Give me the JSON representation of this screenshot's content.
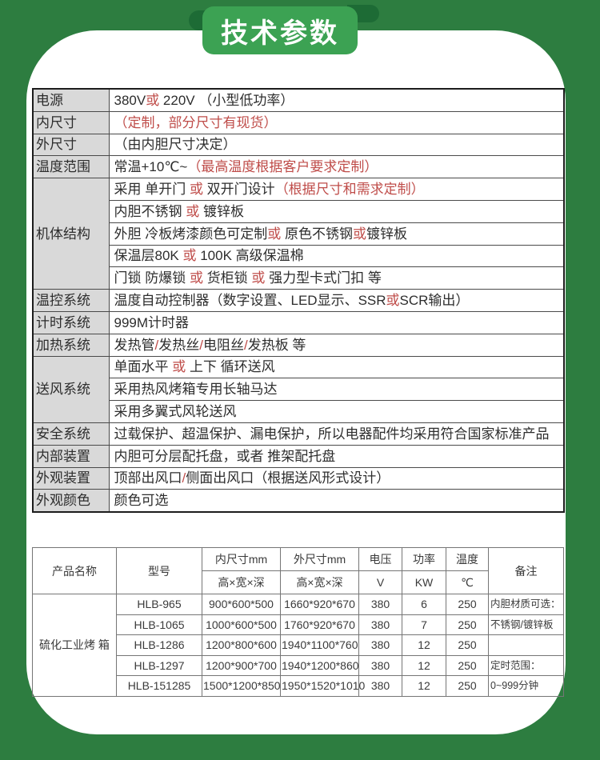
{
  "badge": {
    "label": "技术参数"
  },
  "colors": {
    "frame_green": "#2d7d40",
    "badge_green": "#3ca253",
    "fold_green": "#1d6b35",
    "accent_red": "#bf4c49",
    "label_gray": "#d9d9d9"
  },
  "spec_table": {
    "rows": [
      {
        "label": "电源",
        "lines": [
          [
            {
              "t": "380V",
              "c": "k"
            },
            {
              "t": "或",
              "c": "r"
            },
            {
              "t": " 220V （小型低功率）",
              "c": "k"
            }
          ]
        ]
      },
      {
        "label": "内尺寸",
        "lines": [
          [
            {
              "t": "（定制，部分尺寸有现货）",
              "c": "r"
            }
          ]
        ]
      },
      {
        "label": "外尺寸",
        "lines": [
          [
            {
              "t": "（由内胆尺寸决定）",
              "c": "k"
            }
          ]
        ]
      },
      {
        "label": "温度范围",
        "lines": [
          [
            {
              "t": "常温+10℃~",
              "c": "k"
            },
            {
              "t": "（最高温度根据客户要求定制）",
              "c": "r"
            }
          ]
        ]
      },
      {
        "label": "机体结构",
        "lines": [
          [
            {
              "t": "采用 单开门 ",
              "c": "k"
            },
            {
              "t": "或",
              "c": "r"
            },
            {
              "t": " 双开门设计",
              "c": "k"
            },
            {
              "t": "（根据尺寸和需求定制）",
              "c": "r"
            }
          ],
          [
            {
              "t": "内胆不锈钢 ",
              "c": "k"
            },
            {
              "t": "或",
              "c": "r"
            },
            {
              "t": " 镀锌板",
              "c": "k"
            }
          ],
          [
            {
              "t": "外胆 冷板烤漆颜色可定制",
              "c": "k"
            },
            {
              "t": "或",
              "c": "r"
            },
            {
              "t": " 原色不锈钢",
              "c": "k"
            },
            {
              "t": "或",
              "c": "r"
            },
            {
              "t": "镀锌板",
              "c": "k"
            }
          ],
          [
            {
              "t": "保温层80K ",
              "c": "k"
            },
            {
              "t": "或",
              "c": "r"
            },
            {
              "t": " 100K 高级保温棉",
              "c": "k"
            }
          ],
          [
            {
              "t": "门锁 防爆锁 ",
              "c": "k"
            },
            {
              "t": "或",
              "c": "r"
            },
            {
              "t": " 货柜锁 ",
              "c": "k"
            },
            {
              "t": "或",
              "c": "r"
            },
            {
              "t": " 强力型卡式门扣 等",
              "c": "k"
            }
          ]
        ]
      },
      {
        "label": "温控系统",
        "lines": [
          [
            {
              "t": "温度自动控制器（数字设置、LED显示、SSR",
              "c": "k"
            },
            {
              "t": "或",
              "c": "r"
            },
            {
              "t": "SCR输出）",
              "c": "k"
            }
          ]
        ]
      },
      {
        "label": "计时系统",
        "lines": [
          [
            {
              "t": "999M计时器",
              "c": "k"
            }
          ]
        ]
      },
      {
        "label": "加热系统",
        "lines": [
          [
            {
              "t": "发热管",
              "c": "k"
            },
            {
              "t": "/",
              "c": "r"
            },
            {
              "t": "发热丝",
              "c": "k"
            },
            {
              "t": "/",
              "c": "r"
            },
            {
              "t": "电阻丝",
              "c": "k"
            },
            {
              "t": "/",
              "c": "r"
            },
            {
              "t": "发热板 等",
              "c": "k"
            }
          ]
        ]
      },
      {
        "label": "送风系统",
        "lines": [
          [
            {
              "t": "单面水平 ",
              "c": "k"
            },
            {
              "t": "或",
              "c": "r"
            },
            {
              "t": " 上下 循环送风",
              "c": "k"
            }
          ],
          [
            {
              "t": "采用热风烤箱专用长轴马达",
              "c": "k"
            }
          ],
          [
            {
              "t": "采用多翼式风轮送风",
              "c": "k"
            }
          ]
        ]
      },
      {
        "label": "安全系统",
        "lines": [
          [
            {
              "t": "过载保护、超温保护、漏电保护，所以电器配件均采用符合国家标准产品",
              "c": "k"
            }
          ]
        ]
      },
      {
        "label": "内部装置",
        "lines": [
          [
            {
              "t": "内胆可分层配托盘，或者 推架配托盘",
              "c": "k"
            }
          ]
        ]
      },
      {
        "label": "外观装置",
        "lines": [
          [
            {
              "t": "顶部出风口",
              "c": "k"
            },
            {
              "t": "/",
              "c": "r"
            },
            {
              "t": "侧面出风口（根据送风形式设计）",
              "c": "k"
            }
          ]
        ]
      },
      {
        "label": "外观颜色",
        "lines": [
          [
            {
              "t": "颜色可选",
              "c": "k"
            }
          ]
        ]
      }
    ]
  },
  "model_table": {
    "header": {
      "product": "产品名称",
      "model": "型号",
      "inner": "内尺寸mm",
      "outer": "外尺寸mm",
      "dims": "高×宽×深",
      "voltage": "电压",
      "voltage_unit": "V",
      "power": "功率",
      "power_unit": "KW",
      "temp": "温度",
      "temp_unit": "℃",
      "remark": "备注"
    },
    "product_name": "硫化工业烤 箱",
    "rows": [
      {
        "model": "HLB-965",
        "inner": "900*600*500",
        "outer": "1660*920*670",
        "voltage": "380",
        "power": "6",
        "temp": "250",
        "remark": "内胆材质可选："
      },
      {
        "model": "HLB-1065",
        "inner": "1000*600*500",
        "outer": "1760*920*670",
        "voltage": "380",
        "power": "7",
        "temp": "250",
        "remark": "不锈钢/镀锌板"
      },
      {
        "model": "HLB-1286",
        "inner": "1200*800*600",
        "outer": "1940*1100*760",
        "voltage": "380",
        "power": "12",
        "temp": "250",
        "remark": ""
      },
      {
        "model": "HLB-1297",
        "inner": "1200*900*700",
        "outer": "1940*1200*860",
        "voltage": "380",
        "power": "12",
        "temp": "250",
        "remark": "定时范围："
      },
      {
        "model": "HLB-151285",
        "inner": "1500*1200*850",
        "outer": "1950*1520*1010",
        "voltage": "380",
        "power": "12",
        "temp": "250",
        "remark": "0~999分钟"
      }
    ]
  }
}
